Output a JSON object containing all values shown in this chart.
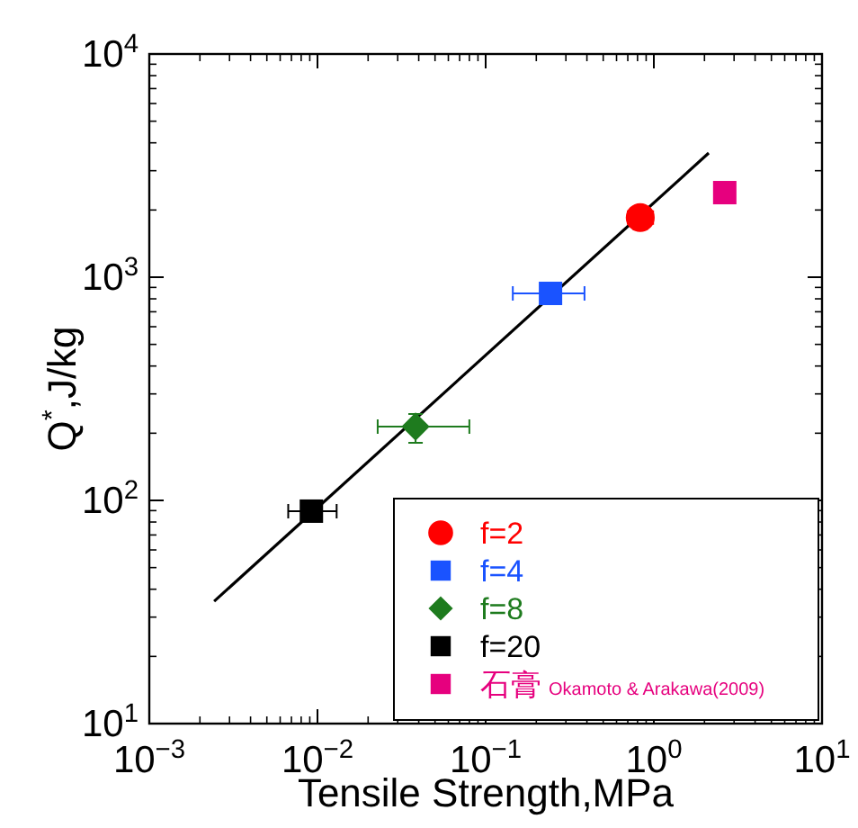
{
  "chart_data": {
    "type": "scatter",
    "xlabel": "Tensile Strength,MPa",
    "ylabel": "Q$^{*}$,J/kg",
    "log": "xy",
    "grid": false,
    "legend": "bottom right",
    "xlim": [
      0.001,
      10
    ],
    "ylim": [
      10,
      10000
    ],
    "xticks": [
      {
        "value": 0.001,
        "label": "10$^{−3}$"
      },
      {
        "value": 0.01,
        "label": "10$^{−2}$"
      },
      {
        "value": 0.1,
        "label": "10$^{−1}$"
      },
      {
        "value": 1,
        "label": "10$^{0}$"
      },
      {
        "value": 10,
        "label": "10$^{1}$"
      }
    ],
    "yticks": [
      {
        "value": 10,
        "label": "10$^{1}$"
      },
      {
        "value": 100,
        "label": "10$^{2}$"
      },
      {
        "value": 1000,
        "label": "10$^{3}$"
      },
      {
        "value": 10000,
        "label": "10$^{4}$"
      }
    ],
    "annotations": [
      "Okamoto & Arakawa(2009)"
    ],
    "series": [
      {
        "type": "line",
        "color": "#000000",
        "x": [
          0.00243,
          2.12
        ],
        "values": [
          35.3,
          3600
        ],
        "marker": "none",
        "line_style": "solid"
      },
      {
        "name": "f=2",
        "color": "#ff0000",
        "marker": "circle",
        "x": [
          0.83
        ],
        "values": [
          1850
        ],
        "xerrors": [
          [
            0.7,
            0.99
          ]
        ]
      },
      {
        "name": "f=4",
        "color": "#1a53ff",
        "marker": "square",
        "x": [
          0.243
        ],
        "values": [
          846
        ],
        "xerrors": [
          [
            0.145,
            0.387
          ]
        ]
      },
      {
        "name": "f=8",
        "color": "#1e7b1e",
        "marker": "diamond",
        "x": [
          0.0383
        ],
        "values": [
          214
        ],
        "xerrors": [
          [
            0.0228,
            0.08
          ]
        ],
        "errors": [
          [
            181,
            244
          ]
        ]
      },
      {
        "name": "f=20",
        "color": "#000000",
        "marker": "square",
        "x": [
          0.0092
        ],
        "values": [
          89.5
        ],
        "xerrors": [
          [
            0.0067,
            0.013
          ]
        ]
      },
      {
        "name": "石膏",
        "color": "#e6007e",
        "marker": "square",
        "x": [
          2.64
        ],
        "values": [
          2393
        ]
      }
    ]
  }
}
